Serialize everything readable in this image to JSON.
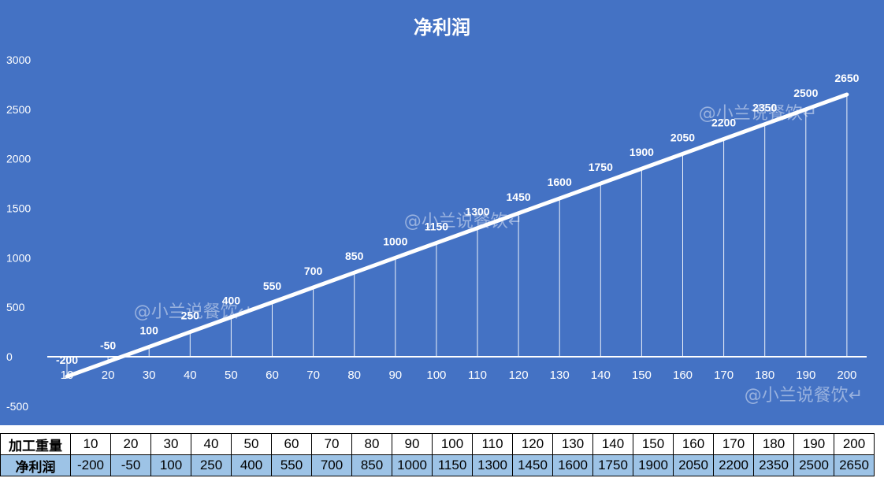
{
  "chart_data": {
    "type": "line",
    "title": "净利润",
    "categories": [
      10,
      20,
      30,
      40,
      50,
      60,
      70,
      80,
      90,
      100,
      110,
      120,
      130,
      140,
      150,
      160,
      170,
      180,
      190,
      200
    ],
    "series": [
      {
        "name": "",
        "values": [
          -200,
          -50,
          100,
          250,
          400,
          550,
          700,
          850,
          1000,
          1150,
          1300,
          1450,
          1600,
          1750,
          1900,
          2050,
          2200,
          2350,
          2500,
          2650
        ]
      }
    ],
    "ylim": [
      -500,
      3000
    ],
    "yticks": [
      -500,
      0,
      500,
      1000,
      1500,
      2000,
      2500,
      3000
    ],
    "xlabel": "",
    "ylabel": "",
    "drop_lines": true,
    "grid": false,
    "legend": "none",
    "colors": {
      "background": "#4472C4",
      "line": "#ffffff",
      "text": "#ffffff"
    }
  },
  "watermark": "@小兰说餐饮↵",
  "table": {
    "row1_label": "加工重量",
    "row2_label": "净利润",
    "row1_values": [
      "10",
      "20",
      "30",
      "40",
      "50",
      "60",
      "70",
      "80",
      "90",
      "100",
      "110",
      "120",
      "130",
      "140",
      "150",
      "160",
      "170",
      "180",
      "190",
      "200"
    ],
    "row2_values": [
      "-200",
      "-50",
      "100",
      "250",
      "400",
      "550",
      "700",
      "850",
      "1000",
      "1150",
      "1300",
      "1450",
      "1600",
      "1750",
      "1900",
      "2050",
      "2200",
      "2350",
      "2500",
      "2650"
    ]
  }
}
